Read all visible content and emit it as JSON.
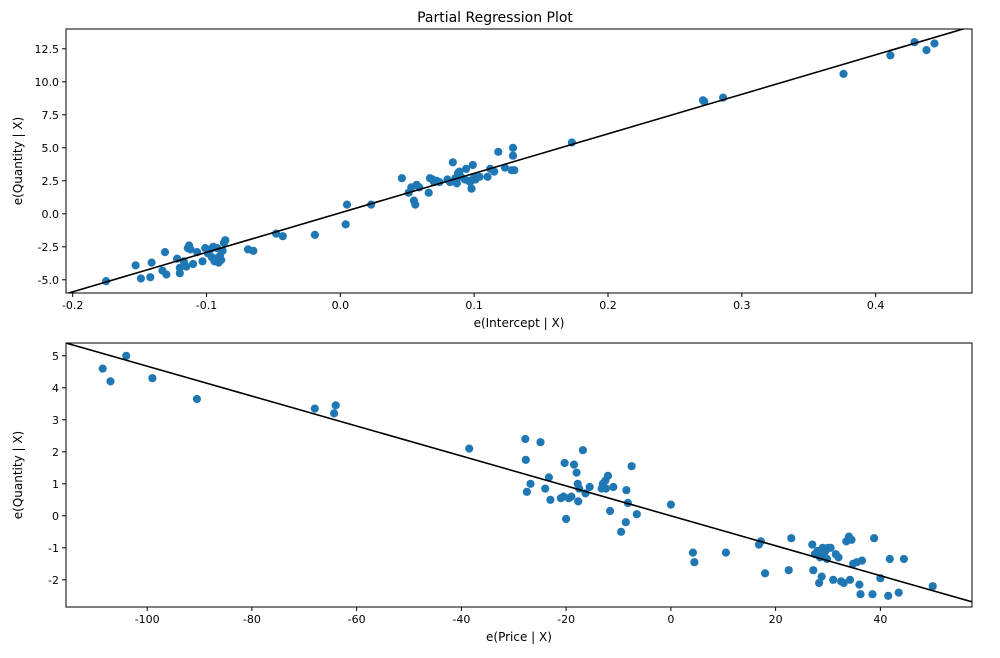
{
  "figure": {
    "title": "Partial Regression Plot"
  },
  "colors": {
    "points": "#1f77b4",
    "line": "#000000",
    "axes": "#000000"
  },
  "chart_data": [
    {
      "type": "scatter",
      "title": "Partial Regression Plot",
      "xlabel": "e(Intercept | X)",
      "ylabel": "e(Quantity | X)",
      "xlim": [
        -0.205,
        0.472
      ],
      "ylim": [
        -6.0,
        14.0
      ],
      "xticks": [
        -0.2,
        -0.1,
        0.0,
        0.1,
        0.2,
        0.3,
        0.4
      ],
      "xtick_labels": [
        "-0.2",
        "-0.1",
        "0.0",
        "0.1",
        "0.2",
        "0.3",
        "0.4"
      ],
      "yticks": [
        -5.0,
        -2.5,
        0.0,
        2.5,
        5.0,
        7.5,
        10.0,
        12.5
      ],
      "ytick_labels": [
        "-5.0",
        "-2.5",
        "0.0",
        "2.5",
        "5.0",
        "7.5",
        "10.0",
        "12.5"
      ],
      "grid": false,
      "fit_line": {
        "x": [
          -0.205,
          0.472
        ],
        "y": [
          -6.06,
          14.2
        ]
      },
      "x": [
        -0.175,
        -0.153,
        -0.149,
        -0.142,
        -0.141,
        -0.133,
        -0.131,
        -0.13,
        -0.122,
        -0.12,
        -0.12,
        -0.117,
        -0.115,
        -0.114,
        -0.113,
        -0.112,
        -0.11,
        -0.107,
        -0.103,
        -0.101,
        -0.099,
        -0.097,
        -0.096,
        -0.095,
        -0.094,
        -0.093,
        -0.092,
        -0.091,
        -0.09,
        -0.089,
        -0.088,
        -0.087,
        -0.086,
        -0.069,
        -0.065,
        -0.048,
        -0.043,
        -0.019,
        0.004,
        0.005,
        0.023,
        0.046,
        0.051,
        0.053,
        0.055,
        0.056,
        0.057,
        0.059,
        0.066,
        0.067,
        0.069,
        0.07,
        0.072,
        0.074,
        0.08,
        0.082,
        0.084,
        0.086,
        0.087,
        0.088,
        0.089,
        0.09,
        0.093,
        0.094,
        0.096,
        0.097,
        0.098,
        0.099,
        0.1,
        0.101,
        0.104,
        0.11,
        0.112,
        0.115,
        0.118,
        0.123,
        0.128,
        0.129,
        0.129,
        0.13,
        0.173,
        0.271,
        0.272,
        0.286,
        0.376,
        0.411,
        0.429,
        0.438,
        0.444
      ],
      "y": [
        -5.1,
        -3.9,
        -4.9,
        -4.8,
        -3.7,
        -4.3,
        -2.9,
        -4.6,
        -3.4,
        -4.5,
        -4.1,
        -3.6,
        -4.0,
        -2.6,
        -2.4,
        -2.7,
        -3.8,
        -2.9,
        -3.6,
        -2.6,
        -3.0,
        -2.7,
        -3.3,
        -2.5,
        -3.6,
        -3.4,
        -2.6,
        -3.7,
        -3.2,
        -3.5,
        -2.8,
        -2.2,
        -2.0,
        -2.7,
        -2.8,
        -1.5,
        -1.7,
        -1.6,
        -0.8,
        0.7,
        0.7,
        2.7,
        1.6,
        2.0,
        1.0,
        0.7,
        2.2,
        2.0,
        1.6,
        2.7,
        2.6,
        2.4,
        2.5,
        2.4,
        2.6,
        2.4,
        3.9,
        2.7,
        2.3,
        3.1,
        3.2,
        2.8,
        2.6,
        3.4,
        2.5,
        2.4,
        1.9,
        3.7,
        2.8,
        2.6,
        2.8,
        2.8,
        3.4,
        3.2,
        4.7,
        3.5,
        3.3,
        4.4,
        5.0,
        3.3,
        5.4,
        8.6,
        8.5,
        8.8,
        10.6,
        12.0,
        13.0,
        12.4,
        12.9
      ]
    },
    {
      "type": "scatter",
      "title": "",
      "xlabel": "e(Price | X)",
      "ylabel": "e(Quantity | X)",
      "xlim": [
        -115.5,
        57.5
      ],
      "ylim": [
        -2.85,
        5.4
      ],
      "xticks": [
        -100,
        -80,
        -60,
        -40,
        -20,
        0,
        20,
        40
      ],
      "xtick_labels": [
        "-100",
        "-80",
        "-60",
        "-40",
        "-20",
        "0",
        "20",
        "40"
      ],
      "yticks": [
        -2,
        -1,
        0,
        1,
        2,
        3,
        4,
        5
      ],
      "ytick_labels": [
        "-2",
        "-1",
        "0",
        "1",
        "2",
        "3",
        "4",
        "5"
      ],
      "grid": false,
      "fit_line": {
        "x": [
          -115.5,
          57.5
        ],
        "y": [
          5.4,
          -2.69
        ]
      },
      "x": [
        -108.5,
        -107.0,
        -104.0,
        -99.0,
        -90.5,
        -68.0,
        -64.3,
        -64.0,
        -38.5,
        -27.8,
        -27.7,
        -27.5,
        -26.8,
        -24.9,
        -24.0,
        -23.3,
        -23.0,
        -21.0,
        -20.5,
        -20.3,
        -20.0,
        -19.5,
        -19.0,
        -18.5,
        -18.0,
        -17.8,
        -17.7,
        -17.5,
        -16.8,
        -16.3,
        -15.5,
        -13.2,
        -13.0,
        -12.5,
        -12.4,
        -12.0,
        -11.6,
        -11.0,
        -9.5,
        -8.6,
        -8.5,
        -8.2,
        -7.5,
        -6.5,
        0.0,
        4.2,
        4.5,
        10.5,
        16.8,
        17.2,
        18.0,
        22.5,
        23.0,
        27.0,
        27.2,
        27.5,
        28.0,
        28.3,
        28.5,
        28.8,
        29.0,
        29.2,
        29.5,
        29.8,
        30.0,
        30.5,
        31.0,
        31.5,
        32.0,
        32.5,
        33.0,
        33.5,
        34.0,
        34.2,
        34.5,
        34.8,
        35.5,
        36.0,
        36.2,
        36.5,
        38.5,
        38.8,
        40.0,
        41.5,
        41.8,
        43.5,
        44.5,
        50.0
      ],
      "y": [
        4.6,
        4.2,
        5.0,
        4.3,
        3.65,
        3.35,
        3.2,
        3.45,
        2.1,
        2.4,
        1.75,
        0.75,
        1.0,
        2.3,
        0.85,
        1.2,
        0.5,
        0.55,
        0.6,
        1.65,
        -0.1,
        0.55,
        0.6,
        1.6,
        1.35,
        1.0,
        0.45,
        0.85,
        2.05,
        0.7,
        0.9,
        0.85,
        1.0,
        1.1,
        0.85,
        1.25,
        0.15,
        0.9,
        -0.5,
        -0.2,
        0.8,
        0.4,
        1.55,
        0.05,
        0.35,
        -1.15,
        -1.45,
        -1.15,
        -0.9,
        -0.8,
        -1.8,
        -1.7,
        -0.7,
        -0.9,
        -1.7,
        -1.2,
        -1.1,
        -2.1,
        -1.3,
        -1.9,
        -1.0,
        -1.2,
        -1.1,
        -1.35,
        -1.0,
        -1.0,
        -2.0,
        -1.2,
        -1.3,
        -2.05,
        -2.1,
        -0.8,
        -0.65,
        -2.0,
        -0.75,
        -1.5,
        -1.45,
        -2.15,
        -2.45,
        -1.4,
        -2.45,
        -0.7,
        -1.95,
        -2.5,
        -1.35,
        -2.4,
        -1.35,
        -2.2
      ]
    }
  ]
}
